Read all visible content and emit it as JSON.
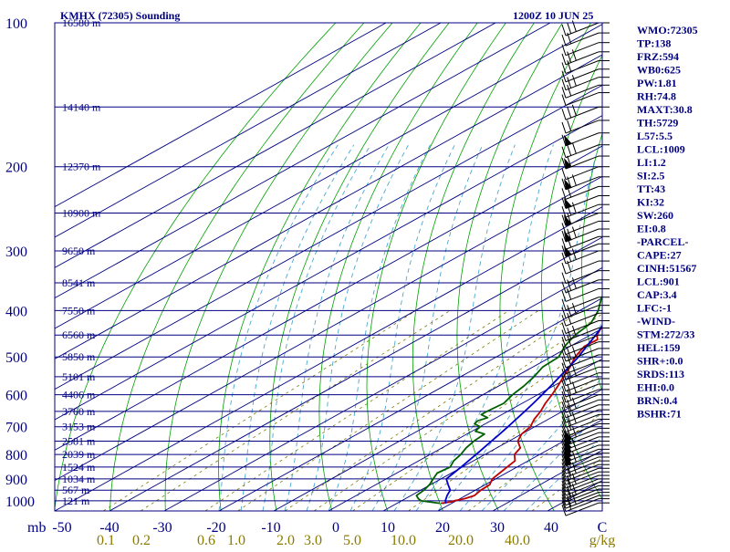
{
  "header": {
    "station": "KMHX (72305) Sounding",
    "valid": "1200Z 10 JUN 25"
  },
  "chart_data": {
    "type": "line",
    "chart_kind": "Skew-T log-P sounding",
    "pressure_axis": {
      "label": "mb",
      "ticks": [
        100,
        200,
        300,
        400,
        500,
        600,
        700,
        800,
        900,
        1000
      ],
      "range": [
        100,
        1050
      ],
      "scale": "log"
    },
    "temperature_axis": {
      "ticks": [
        -50,
        -40,
        -30,
        -20,
        -10,
        0,
        10,
        20,
        30,
        40
      ],
      "range": [
        -50,
        50
      ]
    },
    "mixing_ratio_axis": {
      "unit": "g/kg",
      "ticks": [
        "0.1",
        "0.2",
        "0.6",
        "1.0",
        "2.0",
        "3.0",
        "5.0",
        "10.0",
        "20.0",
        "40.0"
      ]
    },
    "wind_axis_label": "C",
    "height_labels": [
      "16580 m",
      "14140 m",
      "12370 m",
      "10900 m",
      "9650 m",
      "8541 m",
      "7550 m",
      "6560 m",
      "5850 m",
      "5101 m",
      "4406 m",
      "3760 m",
      "3153 m",
      "2581 m",
      "2039 m",
      "1524 m",
      "1034 m",
      "567 m",
      "121 m"
    ],
    "height_levels_mb": [
      100,
      150,
      200,
      250,
      300,
      350,
      400,
      450,
      500,
      550,
      600,
      650,
      700,
      750,
      800,
      850,
      900,
      950,
      1000
    ],
    "series": [
      {
        "key": "temperature",
        "points": [
          [
            1012,
            18
          ],
          [
            1005,
            19.5
          ],
          [
            1000,
            19.6
          ],
          [
            990,
            20.8
          ],
          [
            975,
            21.6
          ],
          [
            950,
            21
          ],
          [
            925,
            20.8
          ],
          [
            900,
            19.4
          ],
          [
            875,
            18.8
          ],
          [
            850,
            18.2
          ],
          [
            825,
            17.6
          ],
          [
            800,
            15.4
          ],
          [
            775,
            14.3
          ],
          [
            750,
            11.6
          ],
          [
            725,
            10
          ],
          [
            700,
            9.2
          ],
          [
            675,
            7.4
          ],
          [
            650,
            6
          ],
          [
            625,
            4.2
          ],
          [
            600,
            2.6
          ],
          [
            575,
            0.8
          ],
          [
            550,
            -1.2
          ],
          [
            525,
            -3.2
          ],
          [
            500,
            -5.6
          ],
          [
            475,
            -7.4
          ],
          [
            460,
            -7.2
          ],
          [
            450,
            -8.8
          ],
          [
            425,
            -11.4
          ],
          [
            400,
            -14
          ],
          [
            375,
            -16.2
          ],
          [
            350,
            -19.2
          ],
          [
            325,
            -22.6
          ],
          [
            300,
            -26.2
          ],
          [
            275,
            -30.4
          ],
          [
            250,
            -35
          ],
          [
            225,
            -40
          ],
          [
            200,
            -45
          ],
          [
            185,
            -48
          ],
          [
            170,
            -51
          ],
          [
            150,
            -54.5
          ],
          [
            140,
            -55
          ],
          [
            125,
            -53
          ],
          [
            110,
            -47
          ],
          [
            100,
            -42
          ]
        ]
      },
      {
        "key": "dewpoint",
        "points": [
          [
            1012,
            17.8
          ],
          [
            1000,
            13.6
          ],
          [
            990,
            12.4
          ],
          [
            975,
            11
          ],
          [
            950,
            10.6
          ],
          [
            925,
            9.8
          ],
          [
            900,
            8.6
          ],
          [
            875,
            7.4
          ],
          [
            850,
            7.8
          ],
          [
            825,
            6.4
          ],
          [
            800,
            5.6
          ],
          [
            775,
            4.4
          ],
          [
            750,
            3.6
          ],
          [
            725,
            3.2
          ],
          [
            715,
            0.6
          ],
          [
            700,
            0
          ],
          [
            690,
            -2
          ],
          [
            680,
            -2.4
          ],
          [
            670,
            -1.6
          ],
          [
            660,
            -3.8
          ],
          [
            650,
            -3.8
          ],
          [
            625,
            -3.4
          ],
          [
            600,
            -4.6
          ],
          [
            575,
            -5.4
          ],
          [
            550,
            -6.6
          ],
          [
            525,
            -8.2
          ],
          [
            500,
            -8.6
          ],
          [
            475,
            -11
          ],
          [
            450,
            -12.8
          ],
          [
            425,
            -13.8
          ],
          [
            400,
            -16.6
          ],
          [
            375,
            -20.4
          ],
          [
            350,
            -21.8
          ],
          [
            325,
            -26.2
          ],
          [
            310,
            -27.8
          ],
          [
            300,
            -31.2
          ],
          [
            290,
            -32.4
          ],
          [
            275,
            -35.4
          ],
          [
            250,
            -42
          ],
          [
            240,
            -43
          ],
          [
            225,
            -45.4
          ],
          [
            210,
            -49
          ],
          [
            200,
            -51.6
          ],
          [
            185,
            -55
          ],
          [
            170,
            -60
          ],
          [
            150,
            -64.5
          ],
          [
            140,
            -65
          ],
          [
            125,
            -64
          ],
          [
            110,
            -64
          ],
          [
            100,
            -64
          ]
        ]
      },
      {
        "key": "parcel",
        "points": [
          [
            1012,
            19
          ],
          [
            1000,
            18
          ],
          [
            975,
            16.6
          ],
          [
            950,
            15.4
          ],
          [
            925,
            13.2
          ],
          [
            900,
            11
          ],
          [
            875,
            10.4
          ],
          [
            850,
            9.8
          ],
          [
            825,
            9.1
          ],
          [
            800,
            8.4
          ],
          [
            775,
            7.6
          ],
          [
            750,
            6.8
          ],
          [
            725,
            6
          ],
          [
            700,
            5.1
          ],
          [
            675,
            4.1
          ],
          [
            650,
            3.1
          ],
          [
            625,
            2
          ],
          [
            600,
            0.8
          ],
          [
            575,
            -0.5
          ],
          [
            550,
            -1.9
          ],
          [
            525,
            -3.4
          ],
          [
            500,
            -5
          ],
          [
            475,
            -7
          ],
          [
            450,
            -9
          ],
          [
            425,
            -11.4
          ],
          [
            400,
            -14
          ],
          [
            375,
            -17
          ],
          [
            350,
            -20.2
          ],
          [
            325,
            -23.8
          ],
          [
            300,
            -27.8
          ],
          [
            275,
            -32.4
          ],
          [
            250,
            -37.4
          ],
          [
            225,
            -43.2
          ],
          [
            200,
            -49.6
          ],
          [
            175,
            -56.8
          ],
          [
            150,
            -65
          ],
          [
            125,
            -74
          ],
          [
            100,
            -84
          ]
        ]
      }
    ],
    "wind_barbs_mb": [
      1010,
      990,
      975,
      960,
      945,
      930,
      915,
      900,
      885,
      870,
      855,
      840,
      825,
      810,
      795,
      780,
      765,
      750,
      735,
      720,
      705,
      690,
      675,
      660,
      645,
      630,
      615,
      600,
      585,
      570,
      555,
      540,
      525,
      510,
      495,
      480,
      465,
      450,
      435,
      420,
      405,
      390,
      375,
      360,
      345,
      330,
      315,
      300,
      290,
      280,
      270,
      260,
      250,
      240,
      230,
      220,
      210,
      200,
      190,
      180,
      170,
      160,
      150,
      140,
      135,
      130,
      125,
      120,
      115,
      110,
      105,
      100
    ]
  },
  "indices": [
    {
      "name": "WMO",
      "value": "72305"
    },
    {
      "name": "TP",
      "value": "138"
    },
    {
      "name": "FRZ",
      "value": "594"
    },
    {
      "name": "WB0",
      "value": "625"
    },
    {
      "name": "PW",
      "value": "1.81"
    },
    {
      "name": "RH",
      "value": "74.8"
    },
    {
      "name": "MAXT",
      "value": "30.8"
    },
    {
      "name": "TH",
      "value": "5729"
    },
    {
      "name": "L57",
      "value": "5.5"
    },
    {
      "name": "LCL",
      "value": "1009"
    },
    {
      "name": "LI",
      "value": "1.2"
    },
    {
      "name": "SI",
      "value": "2.5"
    },
    {
      "name": "TT",
      "value": "43"
    },
    {
      "name": "KI",
      "value": "32"
    },
    {
      "name": "SW",
      "value": "260"
    },
    {
      "name": "EI",
      "value": "0.8"
    },
    {
      "section": "-PARCEL-"
    },
    {
      "name": "CAPE",
      "value": "27"
    },
    {
      "name": "CINH",
      "value": "51567"
    },
    {
      "name": "LCL",
      "value": "901"
    },
    {
      "name": "CAP",
      "value": "3.4"
    },
    {
      "name": "LFC",
      "value": "-1"
    },
    {
      "section": "-WIND-"
    },
    {
      "name": "STM",
      "value": "272/33"
    },
    {
      "name": "HEL",
      "value": "159"
    },
    {
      "name": "SHR+",
      "value": "0.0"
    },
    {
      "name": "SRDS",
      "value": "113"
    },
    {
      "name": "EHI",
      "value": "0.0"
    },
    {
      "name": "BRN",
      "value": "0.4"
    },
    {
      "name": "BSHR",
      "value": "71"
    }
  ],
  "colors": {
    "frame": "#000080",
    "isobar": "#000080",
    "isotherm": "#000080",
    "dry_adiabat": "#00a000",
    "moist_adiabat": "#4aa8d0",
    "mixing_ratio": "#7a7a00",
    "temperature": "#c00000",
    "dewpoint": "#006000",
    "parcel": "#0000c8",
    "barb": "#000000",
    "mr_label": "#8a7a00"
  }
}
